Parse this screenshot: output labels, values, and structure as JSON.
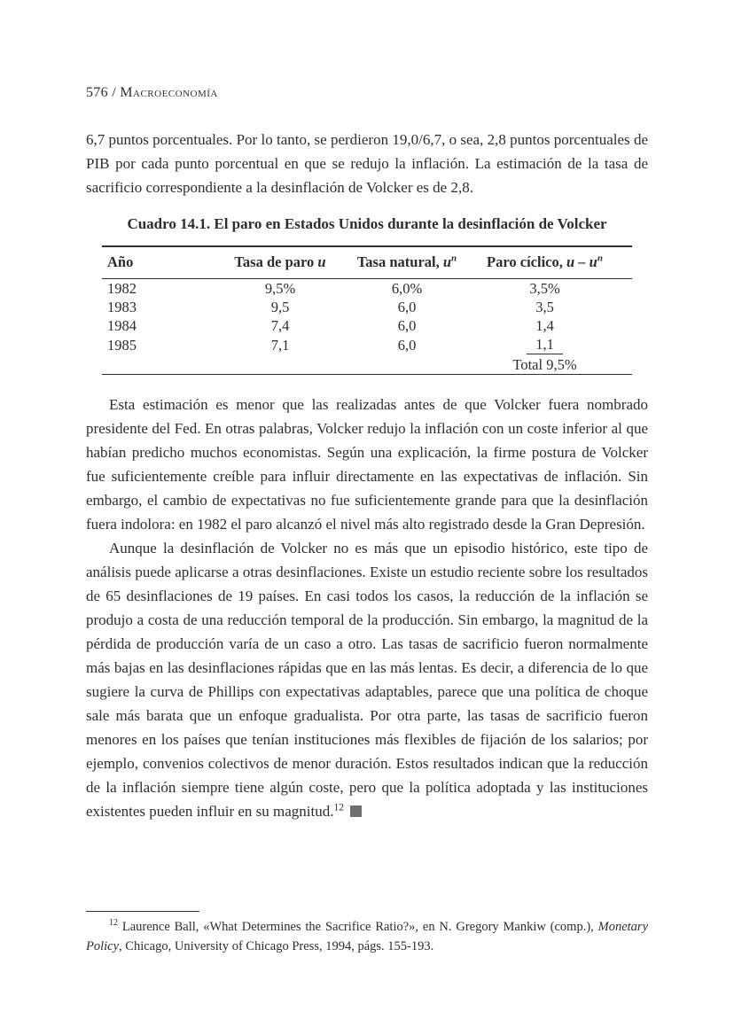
{
  "header": {
    "page_number": "576",
    "separator": "/",
    "book_title": "Macroeconomía"
  },
  "paragraph_1": "6,7 puntos porcentuales. Por lo tanto, se perdieron 19,0/6,7, o sea, 2,8 puntos porcentuales de PIB por cada punto porcentual en que se redujo la inflación. La estimación de la tasa de sacrificio correspondiente a la desinflación de Volcker es de 2,8.",
  "table": {
    "title": "Cuadro 14.1. El paro en Estados Unidos durante la desinflación de Volcker",
    "headers": {
      "year": "Año",
      "unemployment_prefix": "Tasa de paro",
      "unemployment_var": "u",
      "natural_prefix": "Tasa natural,",
      "natural_var": "u",
      "natural_sup": "n",
      "cyclical_prefix": "Paro cíclico,",
      "cyclical_var": "u – u",
      "cyclical_sup": "n"
    },
    "rows": [
      {
        "year": "1982",
        "unemployment": "9,5%",
        "natural": "6,0%",
        "cyclical": "3,5%"
      },
      {
        "year": "1983",
        "unemployment": "9,5",
        "natural": "6,0",
        "cyclical": "3,5"
      },
      {
        "year": "1984",
        "unemployment": "7,4",
        "natural": "6,0",
        "cyclical": "1,4"
      },
      {
        "year": "1985",
        "unemployment": "7,1",
        "natural": "6,0",
        "cyclical": "1,1"
      }
    ],
    "total_label": "Total",
    "total_value": "9,5%"
  },
  "paragraph_2": "Esta estimación es menor que las realizadas antes de que Volcker fuera nombrado presidente del Fed. En otras palabras, Volcker redujo la inflación con un coste inferior al que habían predicho muchos economistas. Según una explicación, la firme postura de Volcker fue suficientemente creíble para influir directamente en las expectativas de inflación. Sin embargo, el cambio de expectativas no fue suficientemente grande para que la desinflación fuera indolora: en 1982 el paro alcanzó el nivel más alto registrado desde la Gran Depresión.",
  "paragraph_3": "Aunque la desinflación de Volcker no es más que un episodio histórico, este tipo de análisis puede aplicarse a otras desinflaciones. Existe un estudio reciente sobre los resultados de 65 desinflaciones de 19 países. En casi todos los casos, la reducción de la inflación se produjo a costa de una reducción temporal de la producción. Sin embargo, la magnitud de la pérdida de producción varía de un caso a otro. Las tasas de sacrificio fueron normalmente más bajas en las desinflaciones rápidas que en las más lentas. Es decir, a diferencia de lo que sugiere la curva de Phillips con expectativas adaptables, parece que una política de choque sale más barata que un enfoque gradualista. Por otra parte, las tasas de sacrificio fueron menores en los países que tenían instituciones más flexibles de fijación de los salarios; por ejemplo, convenios colectivos de menor duración. Estos resultados indican que la reducción de la inflación siempre tiene algún coste, pero que la política adoptada y las instituciones existentes pueden influir en su magnitud.",
  "paragraph_3_footnote_ref": "12",
  "footnote": {
    "number": "12",
    "text_before_italic": "Laurence Ball, «What Determines the Sacrifice Ratio?», en N. Gregory Mankiw (comp.),",
    "italic_work": "Monetary Policy",
    "text_after_italic": ", Chicago, University of Chicago Press, 1994, págs. 155-193."
  }
}
